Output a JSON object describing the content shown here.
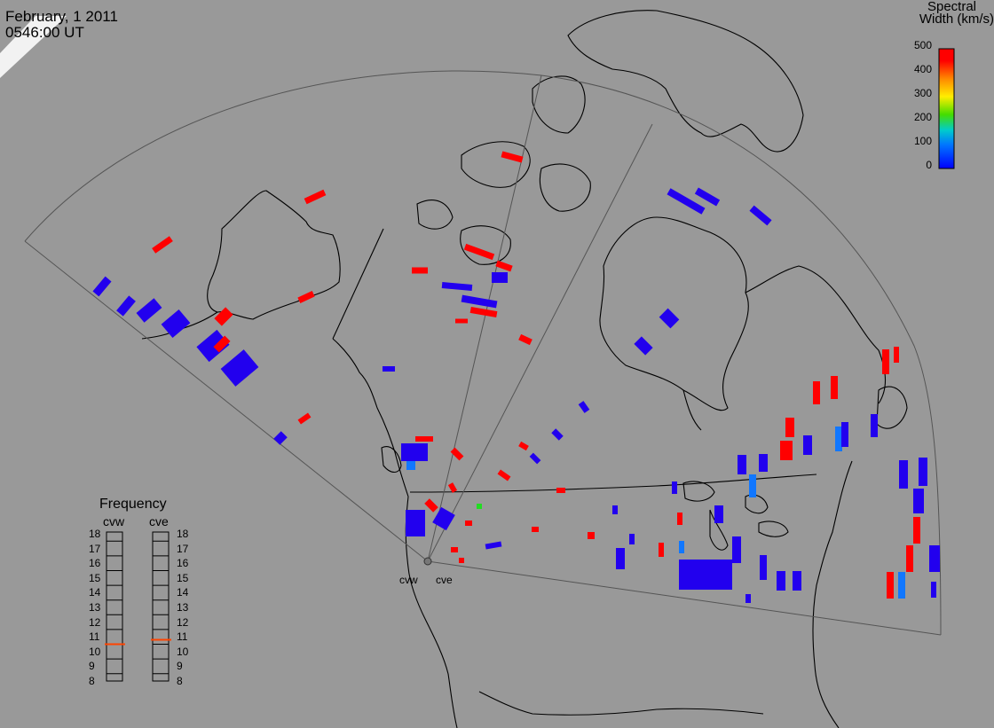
{
  "header": {
    "date": "February, 1 2011",
    "time": "0546:00 UT"
  },
  "colorbar": {
    "title_line1": "Spectral",
    "title_line2": "Width (km/s)",
    "ticks": [
      "500",
      "400",
      "300",
      "200",
      "100",
      "0"
    ],
    "scale_min": 0,
    "scale_max": 500,
    "colors": [
      "#ff0000",
      "#ff6600",
      "#ffcc00",
      "#66dd00",
      "#00cc66",
      "#00cccc",
      "#0066ff",
      "#0000ff"
    ]
  },
  "frequency": {
    "title": "Frequency",
    "radars": [
      "cvw",
      "cve"
    ],
    "ticks": [
      "18",
      "17",
      "16",
      "15",
      "14",
      "13",
      "12",
      "11",
      "10",
      "9",
      "8"
    ],
    "marker_mhz": [
      10.5,
      10.8
    ],
    "marker_color": "#ff4400"
  },
  "radar_labels": [
    "cvw",
    "cve"
  ],
  "colors": {
    "background": "#999999",
    "coast": "#000000",
    "fov": "#555555",
    "high_width": "#ff0000",
    "low_width": "#2200ee",
    "mid_width": "#1177ff"
  }
}
